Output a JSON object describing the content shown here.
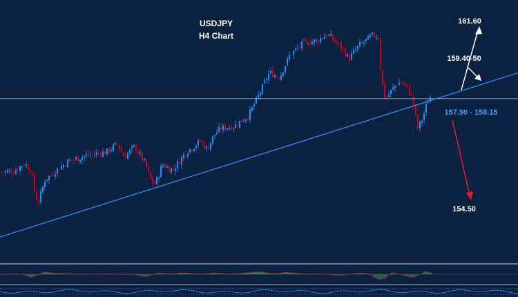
{
  "chart_data": {
    "type": "candlestick",
    "title": "USDJPY",
    "subtitle": "H4 Chart",
    "colors": {
      "background": "#0b2140",
      "bull": "#1e90ff",
      "bear": "#d0021b",
      "trendline": "#2f8cff",
      "level_line": "#b9c7d6",
      "arrow_up": "#ffffff",
      "arrow_down": "#e0202a",
      "histogram_pos": "#27ae60",
      "histogram_neg": "#2f7d4e"
    },
    "annotations": {
      "target_high": "161.60",
      "target_mid": "159.40-50",
      "current_zone": "157.90 - 158.15",
      "target_low": "154.50"
    },
    "price_path": [
      [
        0,
        152.2
      ],
      [
        20,
        152.3
      ],
      [
        35,
        152.9
      ],
      [
        45,
        152.4
      ],
      [
        50,
        150.8
      ],
      [
        55,
        149.8
      ],
      [
        65,
        151.6
      ],
      [
        80,
        152.3
      ],
      [
        100,
        153.1
      ],
      [
        125,
        153.5
      ],
      [
        155,
        153.8
      ],
      [
        170,
        154.4
      ],
      [
        180,
        153.4
      ],
      [
        195,
        154.2
      ],
      [
        210,
        152.9
      ],
      [
        218,
        151.6
      ],
      [
        225,
        151.3
      ],
      [
        235,
        152.8
      ],
      [
        250,
        152.4
      ],
      [
        270,
        153.8
      ],
      [
        290,
        154.6
      ],
      [
        300,
        154.0
      ],
      [
        310,
        155.1
      ],
      [
        320,
        155.6
      ],
      [
        340,
        155.8
      ],
      [
        360,
        156.6
      ],
      [
        375,
        158.2
      ],
      [
        390,
        159.9
      ],
      [
        405,
        159.6
      ],
      [
        420,
        161.3
      ],
      [
        440,
        162.2
      ],
      [
        460,
        162.4
      ],
      [
        472,
        162.9
      ],
      [
        480,
        162.6
      ],
      [
        495,
        161.8
      ],
      [
        505,
        161.0
      ],
      [
        520,
        162.0
      ],
      [
        540,
        162.8
      ],
      [
        548,
        162.7
      ],
      [
        552,
        159.5
      ],
      [
        558,
        157.8
      ],
      [
        565,
        158.4
      ],
      [
        572,
        158.9
      ],
      [
        580,
        159.2
      ],
      [
        590,
        158.7
      ],
      [
        596,
        158.0
      ],
      [
        600,
        157.1
      ],
      [
        605,
        155.6
      ],
      [
        612,
        156.4
      ],
      [
        618,
        157.5
      ],
      [
        624,
        158.1
      ]
    ],
    "level_price": 157.9,
    "trendline": {
      "x1": 0,
      "p1": 147.2,
      "x2": 750,
      "p2": 159.9
    },
    "ylim": [
      145.5,
      165.0
    ]
  }
}
